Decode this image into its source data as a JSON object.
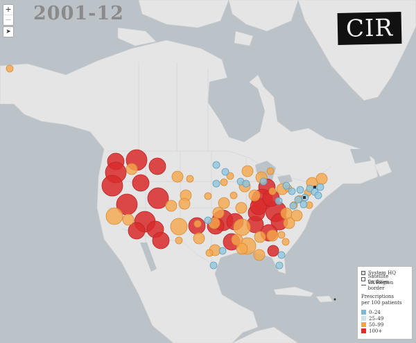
{
  "title": "2001-12",
  "logo_text": "CIR",
  "controls": {
    "zoom_in": "+",
    "zoom_out": "−",
    "locate": "➤"
  },
  "legend": {
    "symbols": [
      {
        "icon": "system-hq-icon",
        "label": "System HQ"
      },
      {
        "icon": "satellite-facility-icon",
        "label": "Satellite facilities"
      },
      {
        "icon": "region-border-line",
        "label": "VA Region border"
      }
    ],
    "heading_line1": "Prescriptions",
    "heading_line2": "per 100 patients",
    "bins": [
      {
        "label": "0–24",
        "color": "#7db8d6"
      },
      {
        "label": "25–49",
        "color": "#cfe2ec"
      },
      {
        "label": "50–99",
        "color": "#f4a54a"
      },
      {
        "label": "100+",
        "color": "#d9302c"
      }
    ]
  },
  "colors": {
    "water": "#bcc3c8",
    "land": "#e5e5e5",
    "cat_low": "#8fc6dc",
    "cat_mid": "#f5a84c",
    "cat_high": "#d92b2b"
  }
}
